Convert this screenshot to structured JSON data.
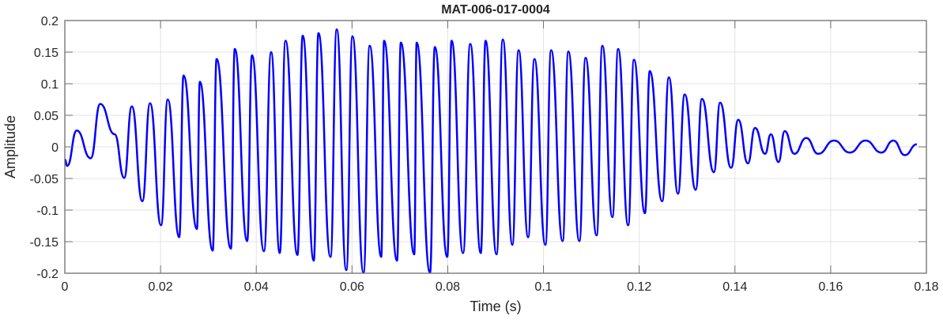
{
  "chart_data": {
    "type": "line",
    "title": "MAT-006-017-0004",
    "xlabel": "Time (s)",
    "ylabel": "Amplitude",
    "xlim": [
      0,
      0.18
    ],
    "ylim": [
      -0.2,
      0.2
    ],
    "xticks": [
      "0",
      "0.02",
      "0.04",
      "0.06",
      "0.08",
      "0.1",
      "0.12",
      "0.14",
      "0.16",
      "0.18"
    ],
    "yticks": [
      "-0.2",
      "-0.15",
      "-0.1",
      "-0.05",
      "0",
      "0.05",
      "0.1",
      "0.15",
      "0.2"
    ],
    "grid": true,
    "line_color": "#0000ff",
    "series": [
      {
        "points": [
          [
            0,
            -0.02
          ],
          [
            0.0005,
            -0.03
          ],
          [
            0.0025,
            0.026
          ],
          [
            0.0054,
            -0.018
          ],
          [
            0.0074,
            0.068
          ],
          [
            0.0104,
            0.02
          ],
          [
            0.0124,
            -0.049
          ],
          [
            0.014,
            0.064
          ],
          [
            0.0162,
            -0.086
          ],
          [
            0.0178,
            0.069
          ],
          [
            0.0201,
            -0.124
          ],
          [
            0.0215,
            0.075
          ],
          [
            0.0239,
            -0.143
          ],
          [
            0.0248,
            0.113
          ],
          [
            0.0276,
            -0.13
          ],
          [
            0.0282,
            0.103
          ],
          [
            0.0309,
            -0.164
          ],
          [
            0.0317,
            0.139
          ],
          [
            0.0347,
            -0.161
          ],
          [
            0.0355,
            0.155
          ],
          [
            0.0381,
            -0.149
          ],
          [
            0.0391,
            0.145
          ],
          [
            0.0416,
            -0.165
          ],
          [
            0.0431,
            0.15
          ],
          [
            0.0449,
            -0.168
          ],
          [
            0.0461,
            0.168
          ],
          [
            0.0486,
            -0.171
          ],
          [
            0.0497,
            0.176
          ],
          [
            0.052,
            -0.18
          ],
          [
            0.053,
            0.18
          ],
          [
            0.0555,
            -0.174
          ],
          [
            0.0568,
            0.186
          ],
          [
            0.0588,
            -0.195
          ],
          [
            0.0601,
            0.175
          ],
          [
            0.0624,
            -0.199
          ],
          [
            0.0637,
            0.16
          ],
          [
            0.0661,
            -0.174
          ],
          [
            0.0667,
            0.168
          ],
          [
            0.0694,
            -0.18
          ],
          [
            0.0702,
            0.165
          ],
          [
            0.073,
            -0.17
          ],
          [
            0.0735,
            0.165
          ],
          [
            0.0763,
            -0.199
          ],
          [
            0.0773,
            0.158
          ],
          [
            0.0799,
            -0.174
          ],
          [
            0.0808,
            0.168
          ],
          [
            0.0832,
            -0.168
          ],
          [
            0.0847,
            0.163
          ],
          [
            0.0869,
            -0.168
          ],
          [
            0.0879,
            0.168
          ],
          [
            0.0902,
            -0.17
          ],
          [
            0.0915,
            0.17
          ],
          [
            0.0935,
            -0.155
          ],
          [
            0.0948,
            0.153
          ],
          [
            0.0968,
            -0.143
          ],
          [
            0.0981,
            0.139
          ],
          [
            0.1004,
            -0.155
          ],
          [
            0.1016,
            0.153
          ],
          [
            0.104,
            -0.149
          ],
          [
            0.1052,
            0.151
          ],
          [
            0.1075,
            -0.149
          ],
          [
            0.1088,
            0.141
          ],
          [
            0.1111,
            -0.14
          ],
          [
            0.1123,
            0.16
          ],
          [
            0.1144,
            -0.111
          ],
          [
            0.1156,
            0.155
          ],
          [
            0.1177,
            -0.124
          ],
          [
            0.1189,
            0.138
          ],
          [
            0.1212,
            -0.105
          ],
          [
            0.1222,
            0.12
          ],
          [
            0.1248,
            -0.086
          ],
          [
            0.1262,
            0.11
          ],
          [
            0.1281,
            -0.074
          ],
          [
            0.1295,
            0.083
          ],
          [
            0.1318,
            -0.068
          ],
          [
            0.1331,
            0.076
          ],
          [
            0.1356,
            -0.04
          ],
          [
            0.1369,
            0.07
          ],
          [
            0.1392,
            -0.033
          ],
          [
            0.1407,
            0.043
          ],
          [
            0.1427,
            -0.026
          ],
          [
            0.1442,
            0.03
          ],
          [
            0.1463,
            -0.011
          ],
          [
            0.1475,
            0.02
          ],
          [
            0.1491,
            -0.024
          ],
          [
            0.1504,
            0.025
          ],
          [
            0.1524,
            -0.011
          ],
          [
            0.1549,
            0.014
          ],
          [
            0.1574,
            -0.011
          ],
          [
            0.1607,
            0.01
          ],
          [
            0.164,
            -0.009
          ],
          [
            0.1673,
            0.01
          ],
          [
            0.1706,
            -0.009
          ],
          [
            0.1731,
            0.01
          ],
          [
            0.1755,
            -0.013
          ],
          [
            0.178,
            0.004
          ]
        ]
      }
    ]
  }
}
